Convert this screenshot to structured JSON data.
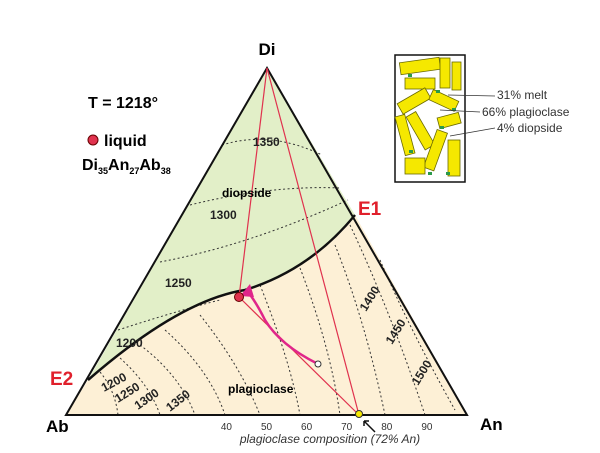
{
  "vertices": {
    "top": "Di",
    "left": "Ab",
    "right": "An"
  },
  "temperature": "T = 1218°",
  "legend": {
    "label": "liquid",
    "formula": [
      {
        "el": "Di",
        "sub": "35"
      },
      {
        "el": "An",
        "sub": "27"
      },
      {
        "el": "Ab",
        "sub": "38"
      }
    ]
  },
  "eutectics": [
    "E1",
    "E2"
  ],
  "fields": {
    "upper": "diopside",
    "lower": "plagioclase"
  },
  "isotherms": {
    "diopside": [
      1350,
      1300,
      1250,
      1200
    ],
    "plagioclase_left": [
      1200,
      1250,
      1300,
      1350
    ],
    "plagioclase_right": [
      1400,
      1450,
      1500
    ]
  },
  "bottom_axis": {
    "ticks": [
      40,
      50,
      60,
      70,
      80,
      90
    ],
    "label": "plagioclase composition (72% An)"
  },
  "inset": [
    "31% melt",
    "66% plagioclase",
    "4% diopside"
  ]
}
